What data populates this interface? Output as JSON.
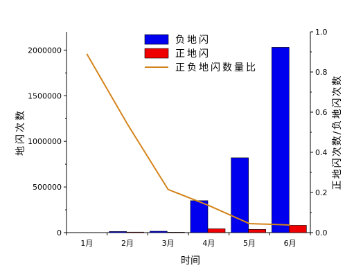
{
  "chart_data": {
    "type": "bar",
    "categories": [
      "1月",
      "2月",
      "3月",
      "4月",
      "5月",
      "6月"
    ],
    "series": [
      {
        "name": "负地闪",
        "type": "bar",
        "axis": "left",
        "color": "#0000ee",
        "values": [
          1500,
          12000,
          15000,
          350000,
          820000,
          2030000
        ]
      },
      {
        "name": "正地闪",
        "type": "bar",
        "axis": "left",
        "color": "#ee0000",
        "values": [
          300,
          6000,
          5000,
          42000,
          35000,
          80000
        ]
      },
      {
        "name": "正负地闪数量比",
        "type": "line",
        "axis": "right",
        "color": "#d4841a",
        "values": [
          0.89,
          0.54,
          0.215,
          0.135,
          0.045,
          0.038
        ]
      }
    ],
    "xlabel": "时间",
    "ylabel": "地闪次数",
    "y2label": "正地闪次数/负地闪次数",
    "ylim": [
      0,
      2200000
    ],
    "yticks": [
      0,
      500000,
      1000000,
      1500000,
      2000000
    ],
    "y2lim": [
      0,
      1.0
    ],
    "y2ticks": [
      "0.0",
      "0.2",
      "0.4",
      "0.6",
      "0.8",
      "1.0"
    ],
    "legend": "top-center",
    "grid": false
  }
}
